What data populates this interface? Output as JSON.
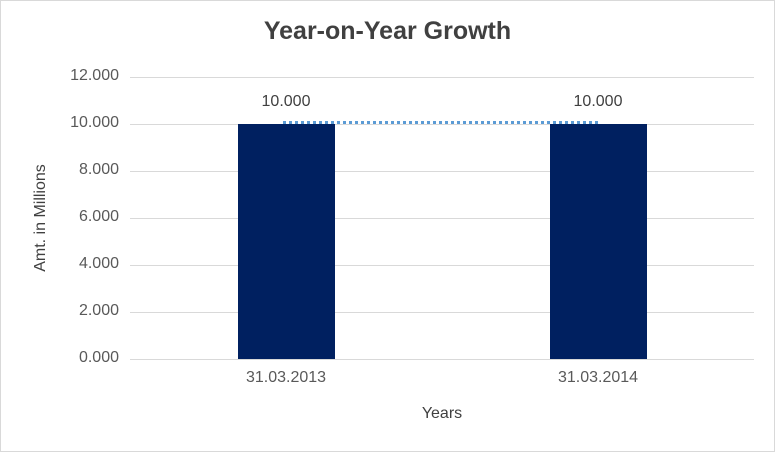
{
  "chart_data": {
    "type": "bar",
    "title": "Year-on-Year Growth",
    "xlabel": "Years",
    "ylabel": "Amt. in Millions",
    "categories": [
      "31.03.2013",
      "31.03.2014"
    ],
    "values": [
      10.0,
      10.0
    ],
    "data_labels": [
      "10.000",
      "10.000"
    ],
    "ylim": [
      0,
      12
    ],
    "ytick_step": 2,
    "ytick_labels": [
      "0.000",
      "2.000",
      "4.000",
      "6.000",
      "8.000",
      "10.000",
      "12.000"
    ],
    "grid": true,
    "legend": "none",
    "trendline": {
      "style": "dotted",
      "values": [
        10.0,
        10.0
      ]
    },
    "colors": {
      "bar": "#002060",
      "trendline": "#5b9bd5",
      "gridline": "#d9d9d9",
      "axis_line": "#d9d9d9",
      "title_text": "#404040",
      "tick_text": "#595959",
      "border": "#d9d9d9"
    }
  }
}
